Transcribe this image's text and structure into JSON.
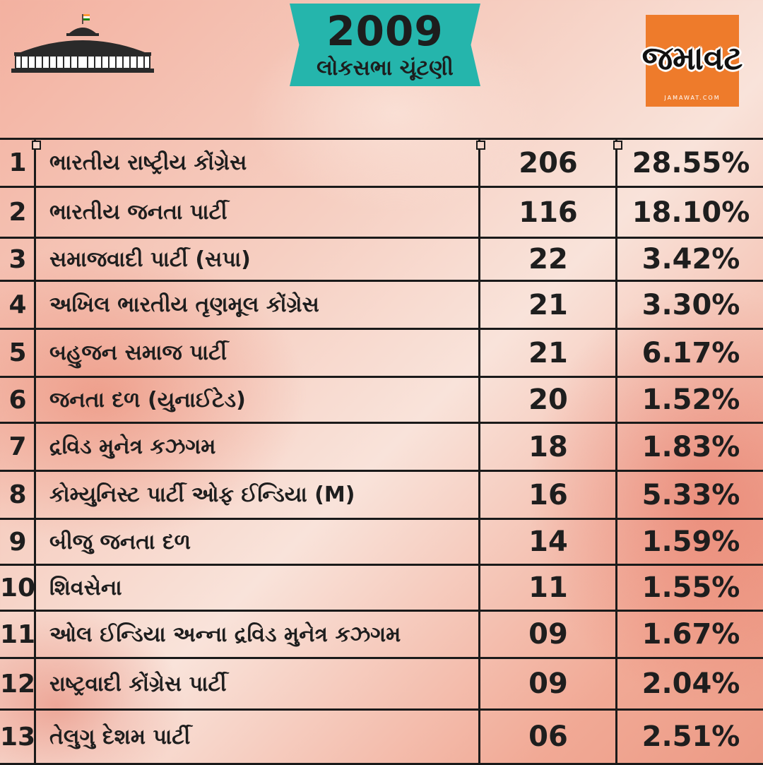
{
  "header": {
    "year": "2009",
    "subtitle": "લોકસભા ચૂંટણી",
    "logo_word": "જમાવટ",
    "logo_domain": "JAMAWAT.COM"
  },
  "rows": [
    {
      "num": "1",
      "party": "ભારતીય રાષ્ટ્રીય કોંગ્રેસ",
      "seats": "206",
      "percent": "28.55%"
    },
    {
      "num": "2",
      "party": "ભારતીય જનતા પાર્ટી",
      "seats": "116",
      "percent": "18.10%"
    },
    {
      "num": "3",
      "party": "સમાજવાદી પાર્ટી (સપા)",
      "seats": "22",
      "percent": "3.42%"
    },
    {
      "num": "4",
      "party": "અખિલ ભારતીય તૃણમૂલ કોંગ્રેસ",
      "seats": "21",
      "percent": "3.30%"
    },
    {
      "num": "5",
      "party": "બહુજન સમાજ પાર્ટી",
      "seats": "21",
      "percent": "6.17%"
    },
    {
      "num": "6",
      "party": "જનતા દળ (યુનાઈટેડ)",
      "seats": "20",
      "percent": "1.52%"
    },
    {
      "num": "7",
      "party": "દ્રવિડ મુનેત્ર કઝગમ",
      "seats": "18",
      "percent": "1.83%"
    },
    {
      "num": "8",
      "party": "કોમ્યુનિસ્ટ પાર્ટી ઓફ ઈન્ડિયા (M)",
      "seats": "16",
      "percent": "5.33%"
    },
    {
      "num": "9",
      "party": "બીજુ જનતા દળ",
      "seats": "14",
      "percent": "1.59%"
    },
    {
      "num": "10",
      "party": "શિવસેના",
      "seats": "11",
      "percent": "1.55%"
    },
    {
      "num": "11",
      "party": "ઓલ ઈન્ડિયા અન્ના દ્રવિડ મુનેત્ર કઝગમ",
      "seats": "09",
      "percent": "1.67%"
    },
    {
      "num": "12",
      "party": "રાષ્ટ્રવાદી   કોંગ્રેસ પાર્ટી",
      "seats": "09",
      "percent": "2.04%"
    },
    {
      "num": "13",
      "party": "તેલુગુ દેશમ પાર્ટી",
      "seats": "06",
      "percent": "2.51%"
    }
  ],
  "colors": {
    "banner": "#25b5ac",
    "logo_bg": "#ee7b2b",
    "text": "#1e1e1e",
    "grid": "#1a1a1a"
  }
}
